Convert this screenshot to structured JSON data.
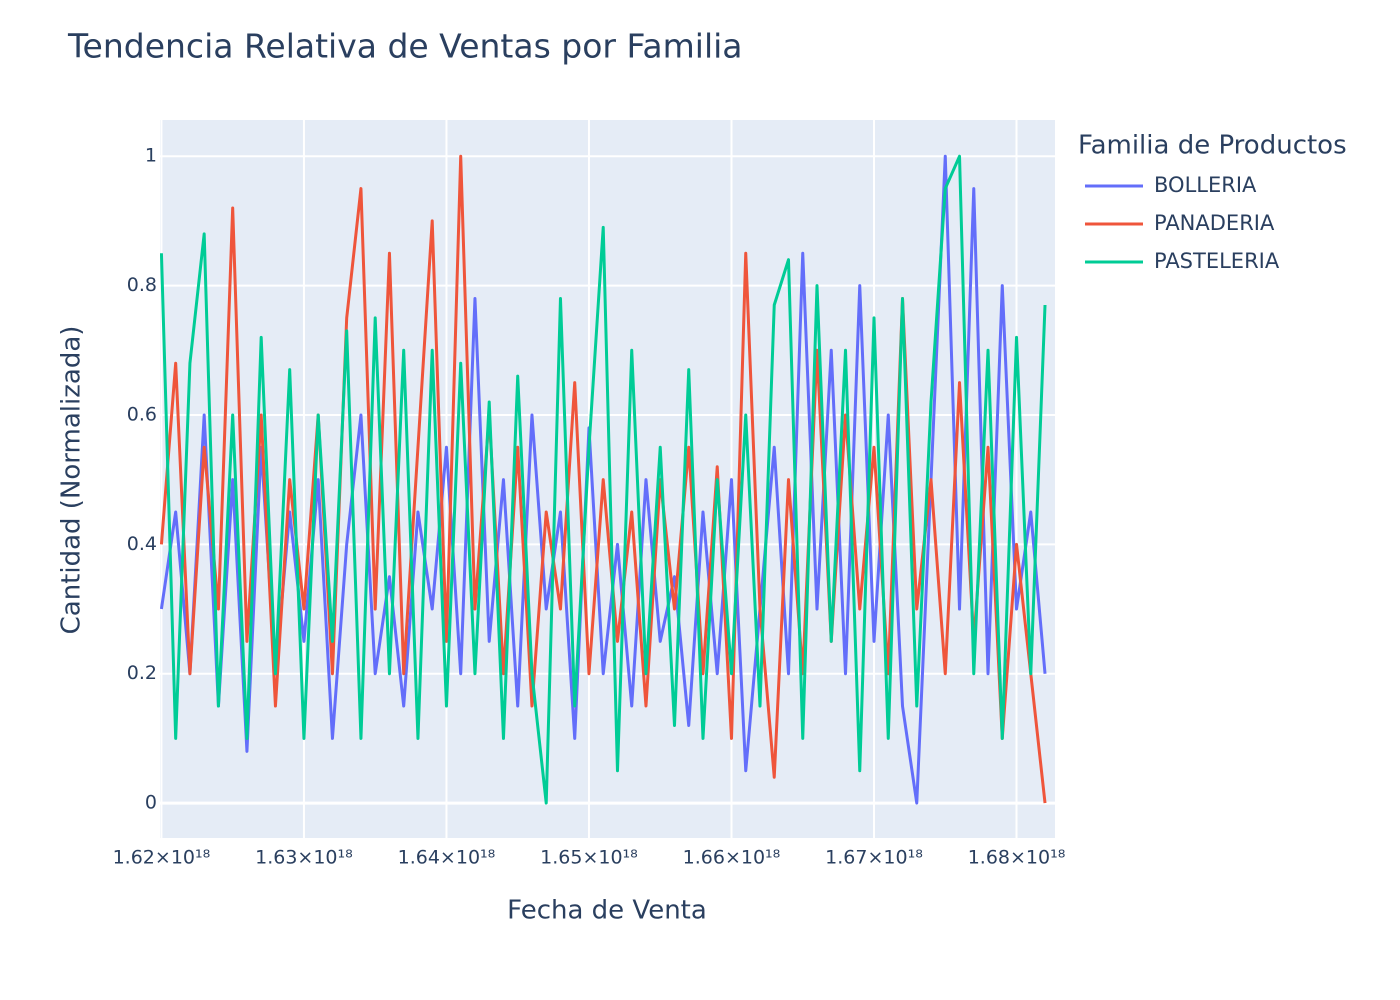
{
  "chart_data": {
    "type": "line",
    "title": "Tendencia Relativa de Ventas por Familia",
    "x_label": "Fecha de Venta",
    "y_label": "Cantidad (Normalizada)",
    "legend_title": "Familia de Productos",
    "legend_position": "right",
    "grid": true,
    "xlim": [
      1.6199e+18,
      1.6827e+18
    ],
    "ylim": [
      -0.054,
      1.056
    ],
    "xticks": [
      {
        "value": 1.62e+18,
        "label": "1.62×10¹⁸"
      },
      {
        "value": 1.63e+18,
        "label": "1.63×10¹⁸"
      },
      {
        "value": 1.64e+18,
        "label": "1.64×10¹⁸"
      },
      {
        "value": 1.65e+18,
        "label": "1.65×10¹⁸"
      },
      {
        "value": 1.66e+18,
        "label": "1.66×10¹⁸"
      },
      {
        "value": 1.67e+18,
        "label": "1.67×10¹⁸"
      },
      {
        "value": 1.68e+18,
        "label": "1.68×10¹⁸"
      }
    ],
    "yticks": [
      0,
      0.2,
      0.4,
      0.6,
      0.8,
      1
    ],
    "x": [
      1.62e+18,
      1.621e+18,
      1.622e+18,
      1.623e+18,
      1.624e+18,
      1.625e+18,
      1.626e+18,
      1.627e+18,
      1.628e+18,
      1.629e+18,
      1.63e+18,
      1.631e+18,
      1.632e+18,
      1.633e+18,
      1.634e+18,
      1.635e+18,
      1.636e+18,
      1.637e+18,
      1.638e+18,
      1.639e+18,
      1.64e+18,
      1.641e+18,
      1.642e+18,
      1.643e+18,
      1.644e+18,
      1.645e+18,
      1.646e+18,
      1.647e+18,
      1.648e+18,
      1.649e+18,
      1.65e+18,
      1.651e+18,
      1.652e+18,
      1.653e+18,
      1.654e+18,
      1.655e+18,
      1.656e+18,
      1.657e+18,
      1.658e+18,
      1.659e+18,
      1.66e+18,
      1.661e+18,
      1.662e+18,
      1.663e+18,
      1.664e+18,
      1.665e+18,
      1.666e+18,
      1.667e+18,
      1.668e+18,
      1.669e+18,
      1.67e+18,
      1.671e+18,
      1.672e+18,
      1.673e+18,
      1.674e+18,
      1.675e+18,
      1.676e+18,
      1.677e+18,
      1.678e+18,
      1.679e+18,
      1.68e+18,
      1.681e+18,
      1.682e+18
    ],
    "series": [
      {
        "name": "BOLLERIA",
        "color": "#636efa",
        "values": [
          0.3,
          0.45,
          0.2,
          0.6,
          0.15,
          0.5,
          0.08,
          0.55,
          0.2,
          0.45,
          0.25,
          0.5,
          0.1,
          0.4,
          0.6,
          0.2,
          0.35,
          0.15,
          0.45,
          0.3,
          0.55,
          0.2,
          0.78,
          0.25,
          0.5,
          0.15,
          0.6,
          0.3,
          0.45,
          0.1,
          0.58,
          0.2,
          0.4,
          0.15,
          0.5,
          0.25,
          0.35,
          0.12,
          0.45,
          0.2,
          0.5,
          0.05,
          0.3,
          0.55,
          0.2,
          0.85,
          0.3,
          0.7,
          0.2,
          0.8,
          0.25,
          0.6,
          0.15,
          0.0,
          0.5,
          1.0,
          0.3,
          0.95,
          0.2,
          0.8,
          0.3,
          0.45,
          0.2
        ]
      },
      {
        "name": "PANADERIA",
        "color": "#ef553b",
        "values": [
          0.4,
          0.68,
          0.2,
          0.55,
          0.3,
          0.92,
          0.25,
          0.6,
          0.15,
          0.5,
          0.3,
          0.6,
          0.2,
          0.75,
          0.95,
          0.3,
          0.85,
          0.2,
          0.55,
          0.9,
          0.25,
          1.0,
          0.3,
          0.6,
          0.2,
          0.55,
          0.15,
          0.45,
          0.3,
          0.65,
          0.2,
          0.5,
          0.25,
          0.45,
          0.15,
          0.5,
          0.3,
          0.55,
          0.2,
          0.52,
          0.1,
          0.85,
          0.3,
          0.04,
          0.5,
          0.2,
          0.7,
          0.25,
          0.6,
          0.3,
          0.55,
          0.2,
          0.78,
          0.3,
          0.5,
          0.2,
          0.65,
          0.25,
          0.55,
          0.1,
          0.4,
          0.2,
          0.0
        ]
      },
      {
        "name": "PASTELERIA",
        "color": "#00cc96",
        "values": [
          0.85,
          0.1,
          0.68,
          0.88,
          0.15,
          0.6,
          0.1,
          0.72,
          0.2,
          0.67,
          0.1,
          0.6,
          0.25,
          0.73,
          0.1,
          0.75,
          0.2,
          0.7,
          0.1,
          0.7,
          0.15,
          0.68,
          0.2,
          0.62,
          0.1,
          0.66,
          0.2,
          0.0,
          0.78,
          0.15,
          0.55,
          0.89,
          0.05,
          0.7,
          0.2,
          0.55,
          0.12,
          0.67,
          0.1,
          0.5,
          0.2,
          0.6,
          0.15,
          0.77,
          0.84,
          0.1,
          0.8,
          0.25,
          0.7,
          0.05,
          0.75,
          0.1,
          0.78,
          0.15,
          0.62,
          0.95,
          1.0,
          0.2,
          0.7,
          0.1,
          0.72,
          0.2,
          0.77
        ]
      }
    ]
  }
}
